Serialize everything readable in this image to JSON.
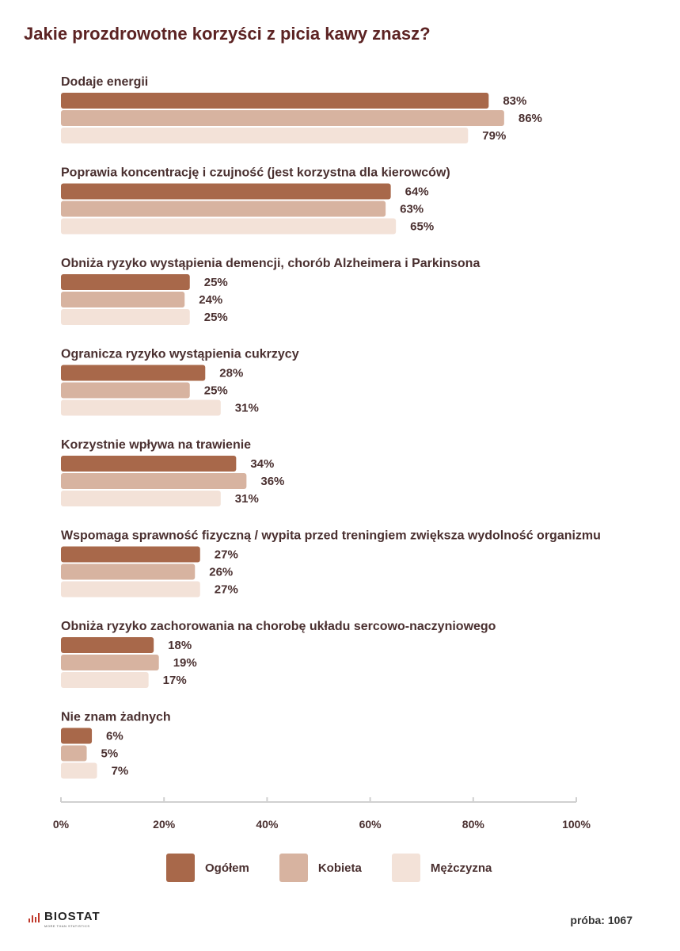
{
  "chart_data": {
    "type": "bar",
    "orientation": "horizontal",
    "title": "Jakie prozdrowotne korzyści z picia kawy znasz?",
    "categories": [
      "Dodaje energii",
      "Poprawia koncentrację i czujność (jest korzystna dla kierowców)",
      "Obniża ryzyko wystąpienia demencji, chorób Alzheimera i Parkinsona",
      "Ogranicza ryzyko wystąpienia cukrzycy",
      "Korzystnie wpływa na trawienie",
      "Wspomaga sprawność fizyczną / wypita przed treningiem zwiększa wydolność organizmu",
      "Obniża ryzyko zachorowania na chorobę układu sercowo-naczyniowego",
      "Nie znam żadnych"
    ],
    "series": [
      {
        "name": "Ogółem",
        "color": "#a8684a",
        "values": [
          83,
          64,
          25,
          28,
          34,
          27,
          18,
          6
        ]
      },
      {
        "name": "Kobieta",
        "color": "#d7b3a0",
        "values": [
          86,
          63,
          24,
          25,
          36,
          26,
          19,
          5
        ]
      },
      {
        "name": "Mężczyzna",
        "color": "#f3e2d8",
        "values": [
          79,
          65,
          25,
          31,
          31,
          27,
          17,
          7
        ]
      }
    ],
    "value_suffix": "%",
    "xlim": [
      0,
      100
    ],
    "x_ticks": [
      "0%",
      "20%",
      "40%",
      "60%",
      "80%",
      "100%"
    ],
    "x_tick_values": [
      0,
      20,
      40,
      60,
      80,
      100
    ],
    "legend_position": "bottom"
  },
  "footer": {
    "logo_text": "BIOSTAT",
    "logo_tagline": "MORE THAN STATISTICS",
    "sample_label": "próba: 1067"
  }
}
